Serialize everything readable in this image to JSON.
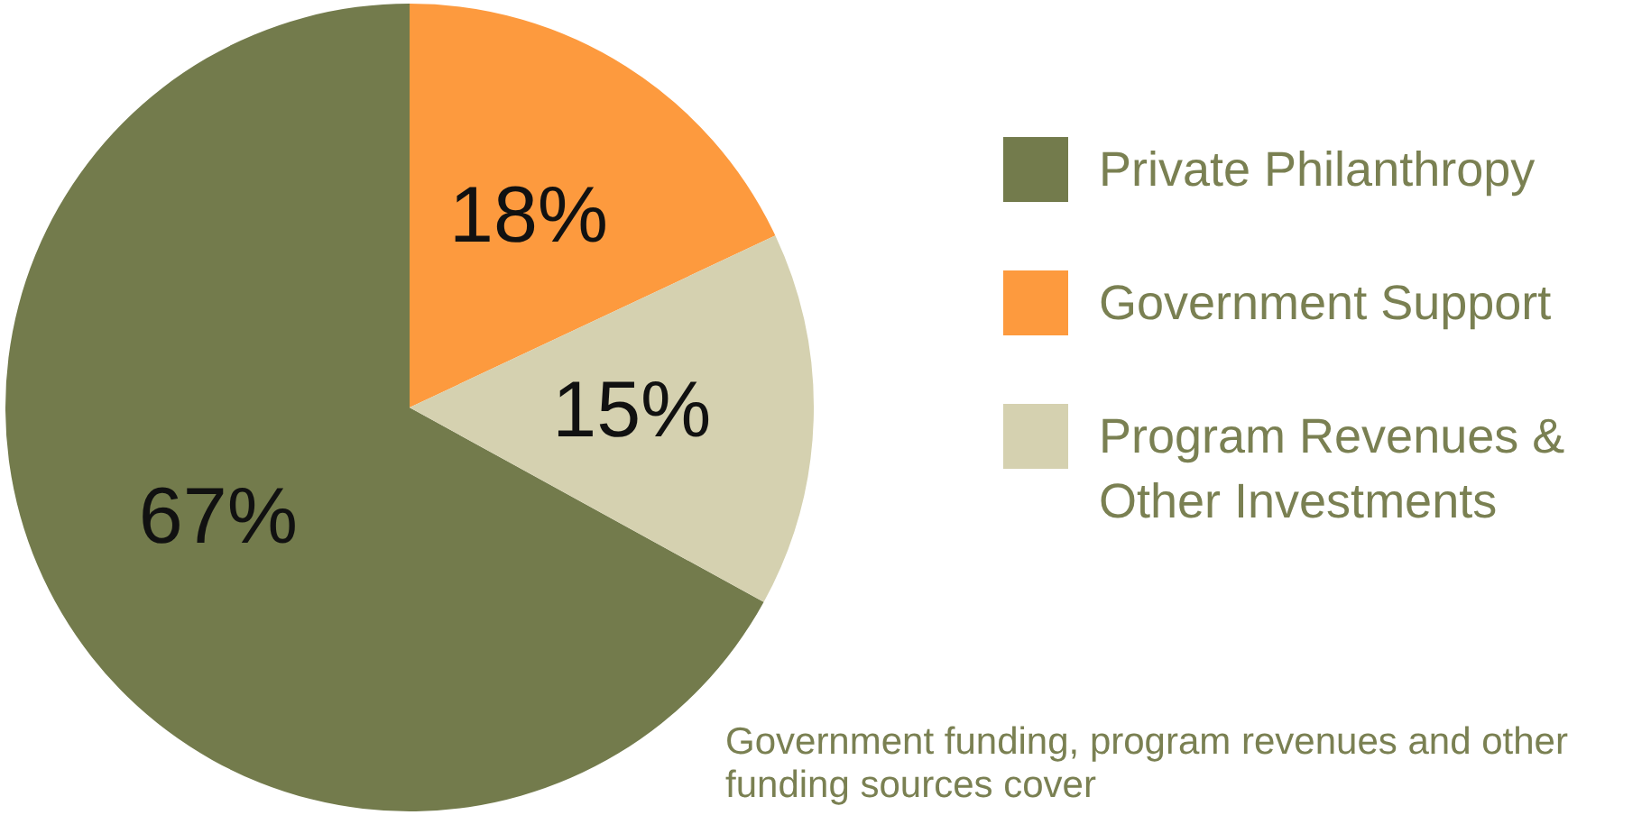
{
  "chart_data": {
    "type": "pie",
    "categories": [
      "Private Philanthropy",
      "Government Support",
      "Program Revenues & Other Investments"
    ],
    "values": [
      67,
      18,
      15
    ],
    "colors": [
      "#737b4c",
      "#fd9a3e",
      "#d5d1b0"
    ],
    "value_labels": [
      "67%",
      "18%",
      "15%"
    ],
    "legend": "right",
    "annotations": [
      "Government funding, program revenues and other funding sources cover"
    ]
  }
}
